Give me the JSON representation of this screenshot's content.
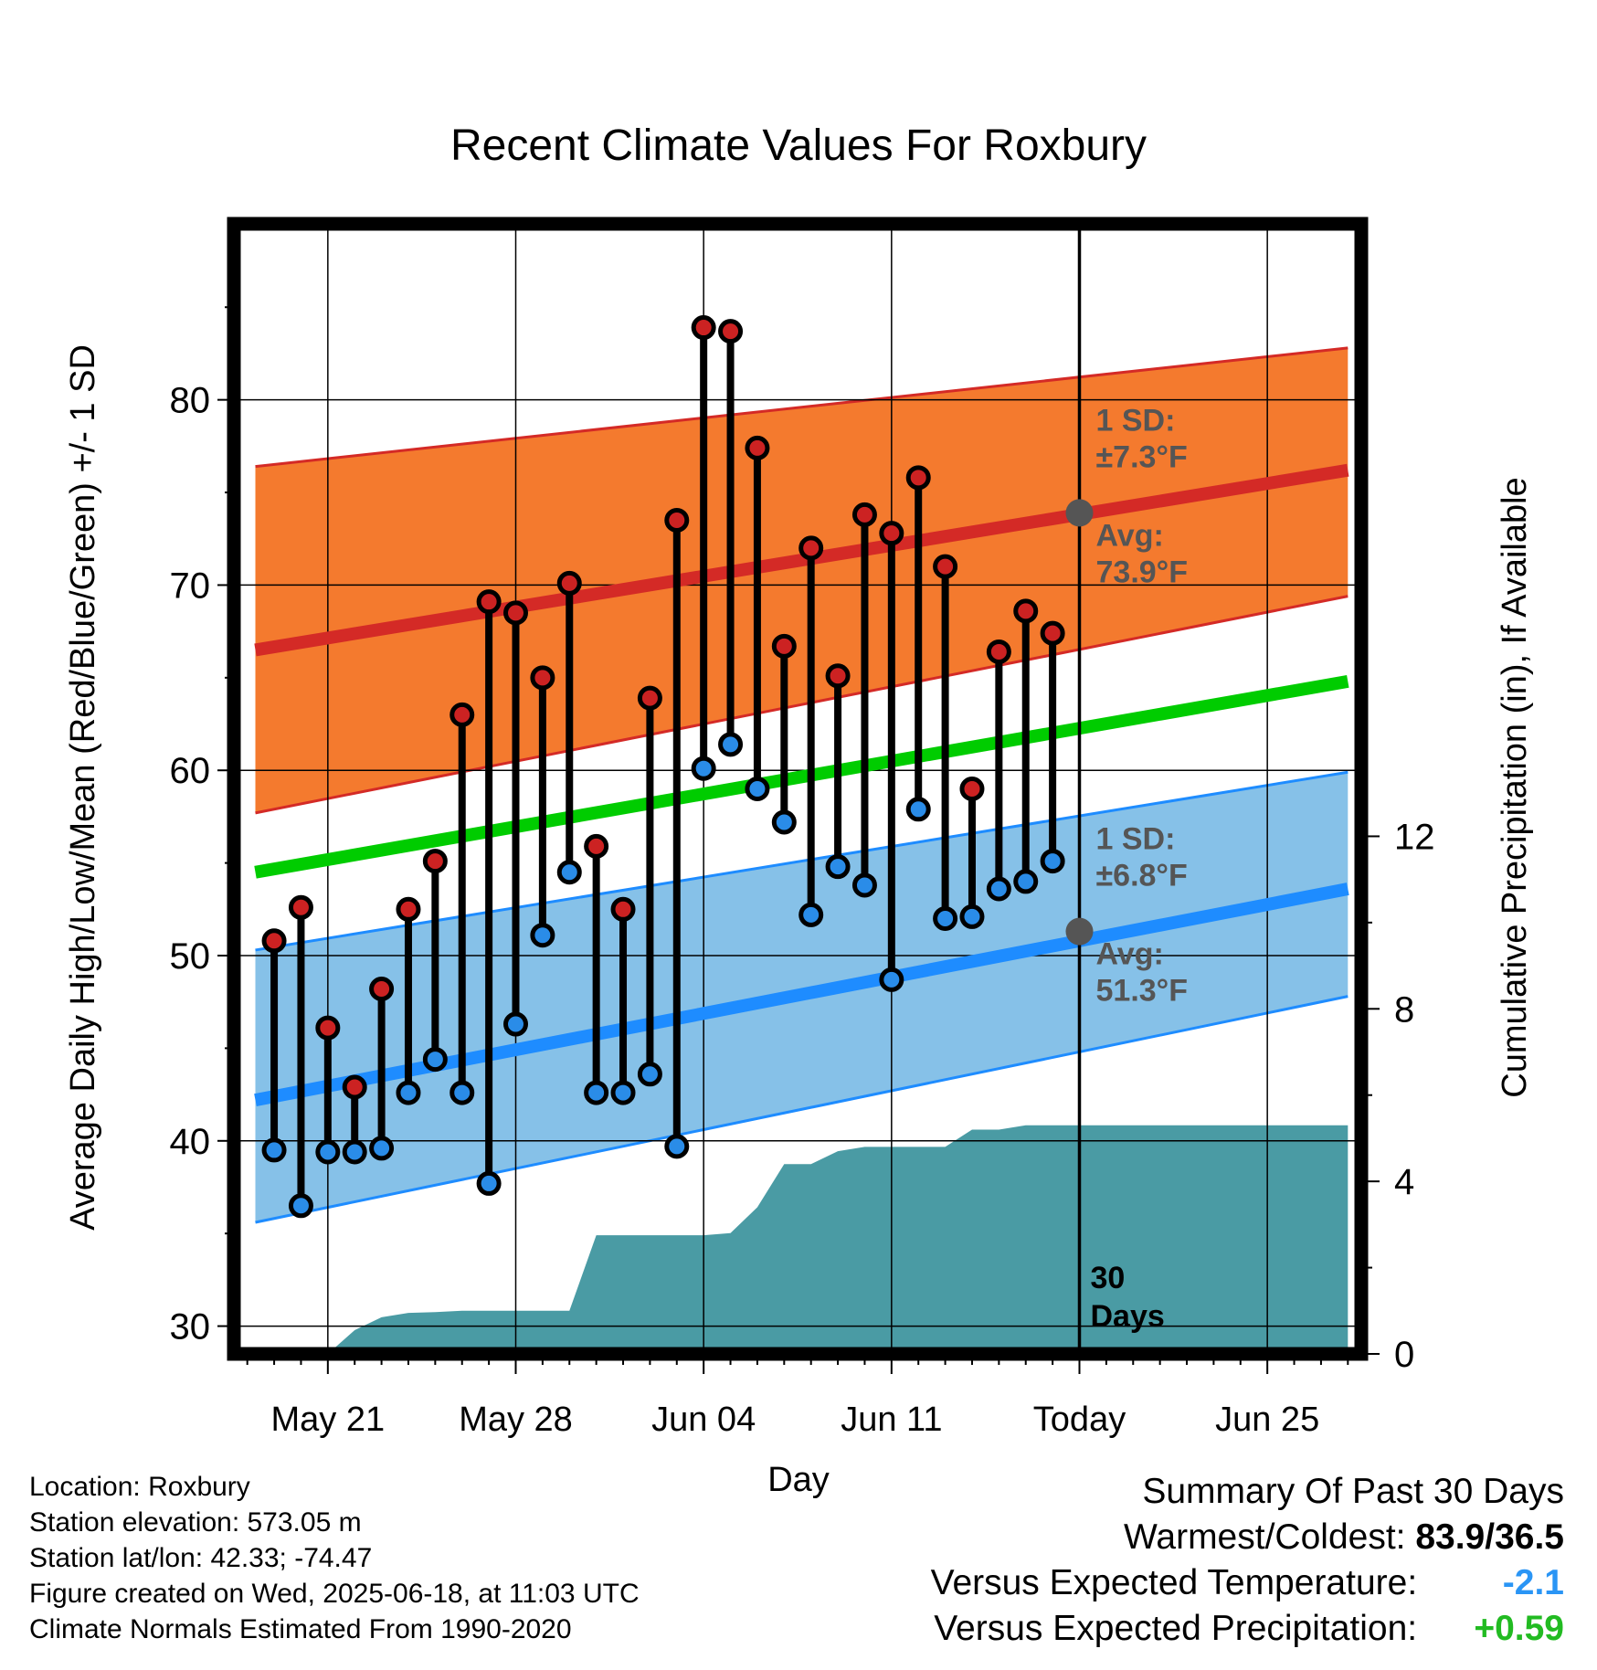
{
  "chart_data": {
    "type": "line",
    "title": "Recent Climate Values For Roxbury",
    "xlabel": "Day",
    "ylabel": "Average Daily High/Low/Mean (Red/Blue/Green) +/- 1 SD",
    "y2label": "Cumulative Precipitation (in), If Available",
    "ylim": [
      28.5,
      89.5
    ],
    "y2lim": [
      0,
      26.2
    ],
    "xlim": [
      -3.5,
      38.5
    ],
    "x_tick_positions": [
      0,
      7,
      14,
      21,
      28,
      35
    ],
    "x_tick_labels": [
      "May 21",
      "May 28",
      "Jun 04",
      "Jun 11",
      "Today",
      "Jun 25"
    ],
    "y_ticks": [
      30,
      40,
      50,
      60,
      70,
      80
    ],
    "y2_ticks": [
      0,
      4,
      8,
      12
    ],
    "grid": true,
    "today_marker": {
      "x": 28,
      "label": "30 Days"
    },
    "normals": {
      "x": [
        -2.7,
        38.0
      ],
      "avg_high": [
        66.5,
        76.2
      ],
      "high_plus_sd": [
        76.4,
        82.8
      ],
      "high_minus_sd": [
        57.7,
        69.4
      ],
      "avg_mean": [
        54.5,
        64.8
      ],
      "avg_low": [
        42.2,
        53.6
      ],
      "low_plus_sd": [
        50.3,
        59.9
      ],
      "low_minus_sd": [
        35.6,
        47.8
      ]
    },
    "today_normals": {
      "high": {
        "sd_label": "1 SD:",
        "sd_value": "±7.3°F",
        "avg_label": "Avg:",
        "avg_value": "73.9°F",
        "avg": 73.9
      },
      "low": {
        "sd_label": "1 SD:",
        "sd_value": "±6.8°F",
        "avg_label": "Avg:",
        "avg_value": "51.3°F",
        "avg": 51.3
      }
    },
    "series": [
      {
        "name": "High",
        "x": [
          -2,
          -1,
          0,
          1,
          2,
          3,
          4,
          5,
          6,
          7,
          8,
          9,
          10,
          11,
          12,
          13,
          14,
          15,
          16,
          17,
          18,
          19,
          20,
          21,
          22,
          23,
          24,
          25,
          26,
          27
        ],
        "values": [
          50.8,
          52.6,
          46.1,
          42.9,
          48.2,
          52.5,
          55.1,
          63.0,
          69.1,
          68.5,
          65.0,
          70.1,
          55.9,
          52.5,
          63.9,
          73.5,
          83.9,
          83.7,
          77.4,
          66.7,
          72.0,
          65.1,
          73.8,
          72.8,
          75.8,
          71.0,
          59.0,
          66.4,
          68.6,
          67.4
        ]
      },
      {
        "name": "Low",
        "x": [
          -2,
          -1,
          0,
          1,
          2,
          3,
          4,
          5,
          6,
          7,
          8,
          9,
          10,
          11,
          12,
          13,
          14,
          15,
          16,
          17,
          18,
          19,
          20,
          21,
          22,
          23,
          24,
          25,
          26,
          27
        ],
        "values": [
          39.5,
          36.5,
          39.4,
          39.4,
          39.6,
          42.6,
          44.4,
          42.6,
          37.7,
          46.3,
          51.1,
          54.5,
          42.6,
          42.6,
          43.6,
          39.7,
          60.1,
          61.4,
          59.0,
          57.2,
          52.2,
          54.8,
          53.8,
          48.7,
          57.9,
          52.0,
          52.1,
          53.6,
          54.0,
          55.1
        ]
      }
    ],
    "precip": {
      "name": "Cumulative Precipitation",
      "x": [
        0,
        1,
        2,
        3,
        4,
        5,
        6,
        7,
        8,
        9,
        10,
        11,
        12,
        13,
        14,
        15,
        16,
        17,
        18,
        19,
        20,
        21,
        22,
        23,
        24,
        25,
        26,
        27,
        28,
        29,
        38
      ],
      "values": [
        0,
        0.55,
        0.85,
        0.95,
        0.97,
        1.0,
        1.0,
        1.0,
        1.0,
        1.0,
        2.75,
        2.75,
        2.75,
        2.75,
        2.75,
        2.8,
        3.4,
        4.4,
        4.4,
        4.7,
        4.8,
        4.8,
        4.8,
        4.8,
        5.2,
        5.2,
        5.3,
        5.3,
        5.3,
        5.3,
        5.3
      ]
    }
  },
  "footer": {
    "location": "Location: Roxbury",
    "elevation": "Station elevation: 573.05 m",
    "latlon": "Station lat/lon: 42.33; -74.47",
    "created": "Figure created on Wed, 2025-06-18, at 11:03 UTC",
    "normals": "Climate Normals Estimated From 1990-2020"
  },
  "summary": {
    "title": "Summary Of Past 30 Days",
    "warm_cold_label": "Warmest/Coldest:",
    "warm_cold_value": "83.9/36.5",
    "temp_label": "Versus Expected Temperature:",
    "temp_value": "-2.1",
    "precip_label": "Versus Expected Precipitation:",
    "precip_value": "+0.59"
  },
  "colors": {
    "high_band": "#f47a2e",
    "high_line": "#d42a26",
    "low_band": "#86c1e8",
    "low_line": "#1e8cff",
    "mean_line": "#00cc00",
    "precip_fill": "#4a9ba4",
    "high_marker": "#cc2222",
    "low_marker": "#2a8ce8",
    "normal_dot": "#555555",
    "annotation_text": "#555555",
    "summary_negative": "#2a95f5",
    "summary_positive": "#22bb22"
  }
}
